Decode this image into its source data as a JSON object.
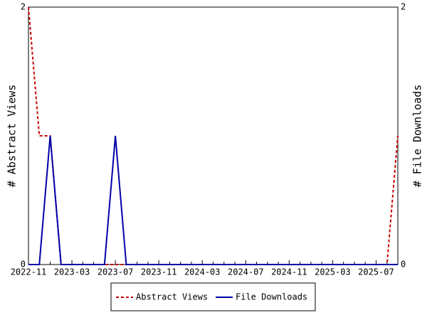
{
  "chart_data": {
    "type": "line",
    "categories": [
      "2022-11",
      null,
      null,
      null,
      "2023-03",
      null,
      null,
      null,
      "2023-07",
      null,
      null,
      null,
      "2023-11",
      null,
      null,
      null,
      "2024-03",
      null,
      null,
      null,
      "2024-07",
      null,
      null,
      null,
      "2024-11",
      null,
      null,
      null,
      "2025-03",
      null,
      null,
      null,
      "2025-07",
      null,
      null
    ],
    "series": [
      {
        "name": "Abstract Views",
        "color": "#cc0000",
        "dashed": true,
        "axis": "y",
        "values": [
          2,
          1,
          1,
          0,
          0,
          0,
          0,
          0,
          0,
          0,
          0,
          0,
          0,
          0,
          0,
          0,
          0,
          0,
          0,
          0,
          0,
          0,
          0,
          0,
          0,
          0,
          0,
          0,
          0,
          0,
          0,
          0,
          0,
          0,
          1
        ]
      },
      {
        "name": "File Downloads",
        "color": "#0000aa",
        "dashed": false,
        "axis": "y2",
        "values": [
          0,
          0,
          1,
          0,
          0,
          0,
          0,
          0,
          1,
          0,
          0,
          0,
          0,
          0,
          0,
          0,
          0,
          0,
          0,
          0,
          0,
          0,
          0,
          0,
          0,
          0,
          0,
          0,
          0,
          0,
          0,
          0,
          0,
          0,
          0
        ]
      }
    ],
    "y_label": "# Abstract Views",
    "y2_label": "# File Downloads",
    "ylim": [
      0,
      2
    ],
    "yticks": [
      0,
      2
    ],
    "y2lim": [
      0,
      2
    ],
    "y2ticks": [
      0,
      2
    ],
    "legend": "bottom"
  }
}
